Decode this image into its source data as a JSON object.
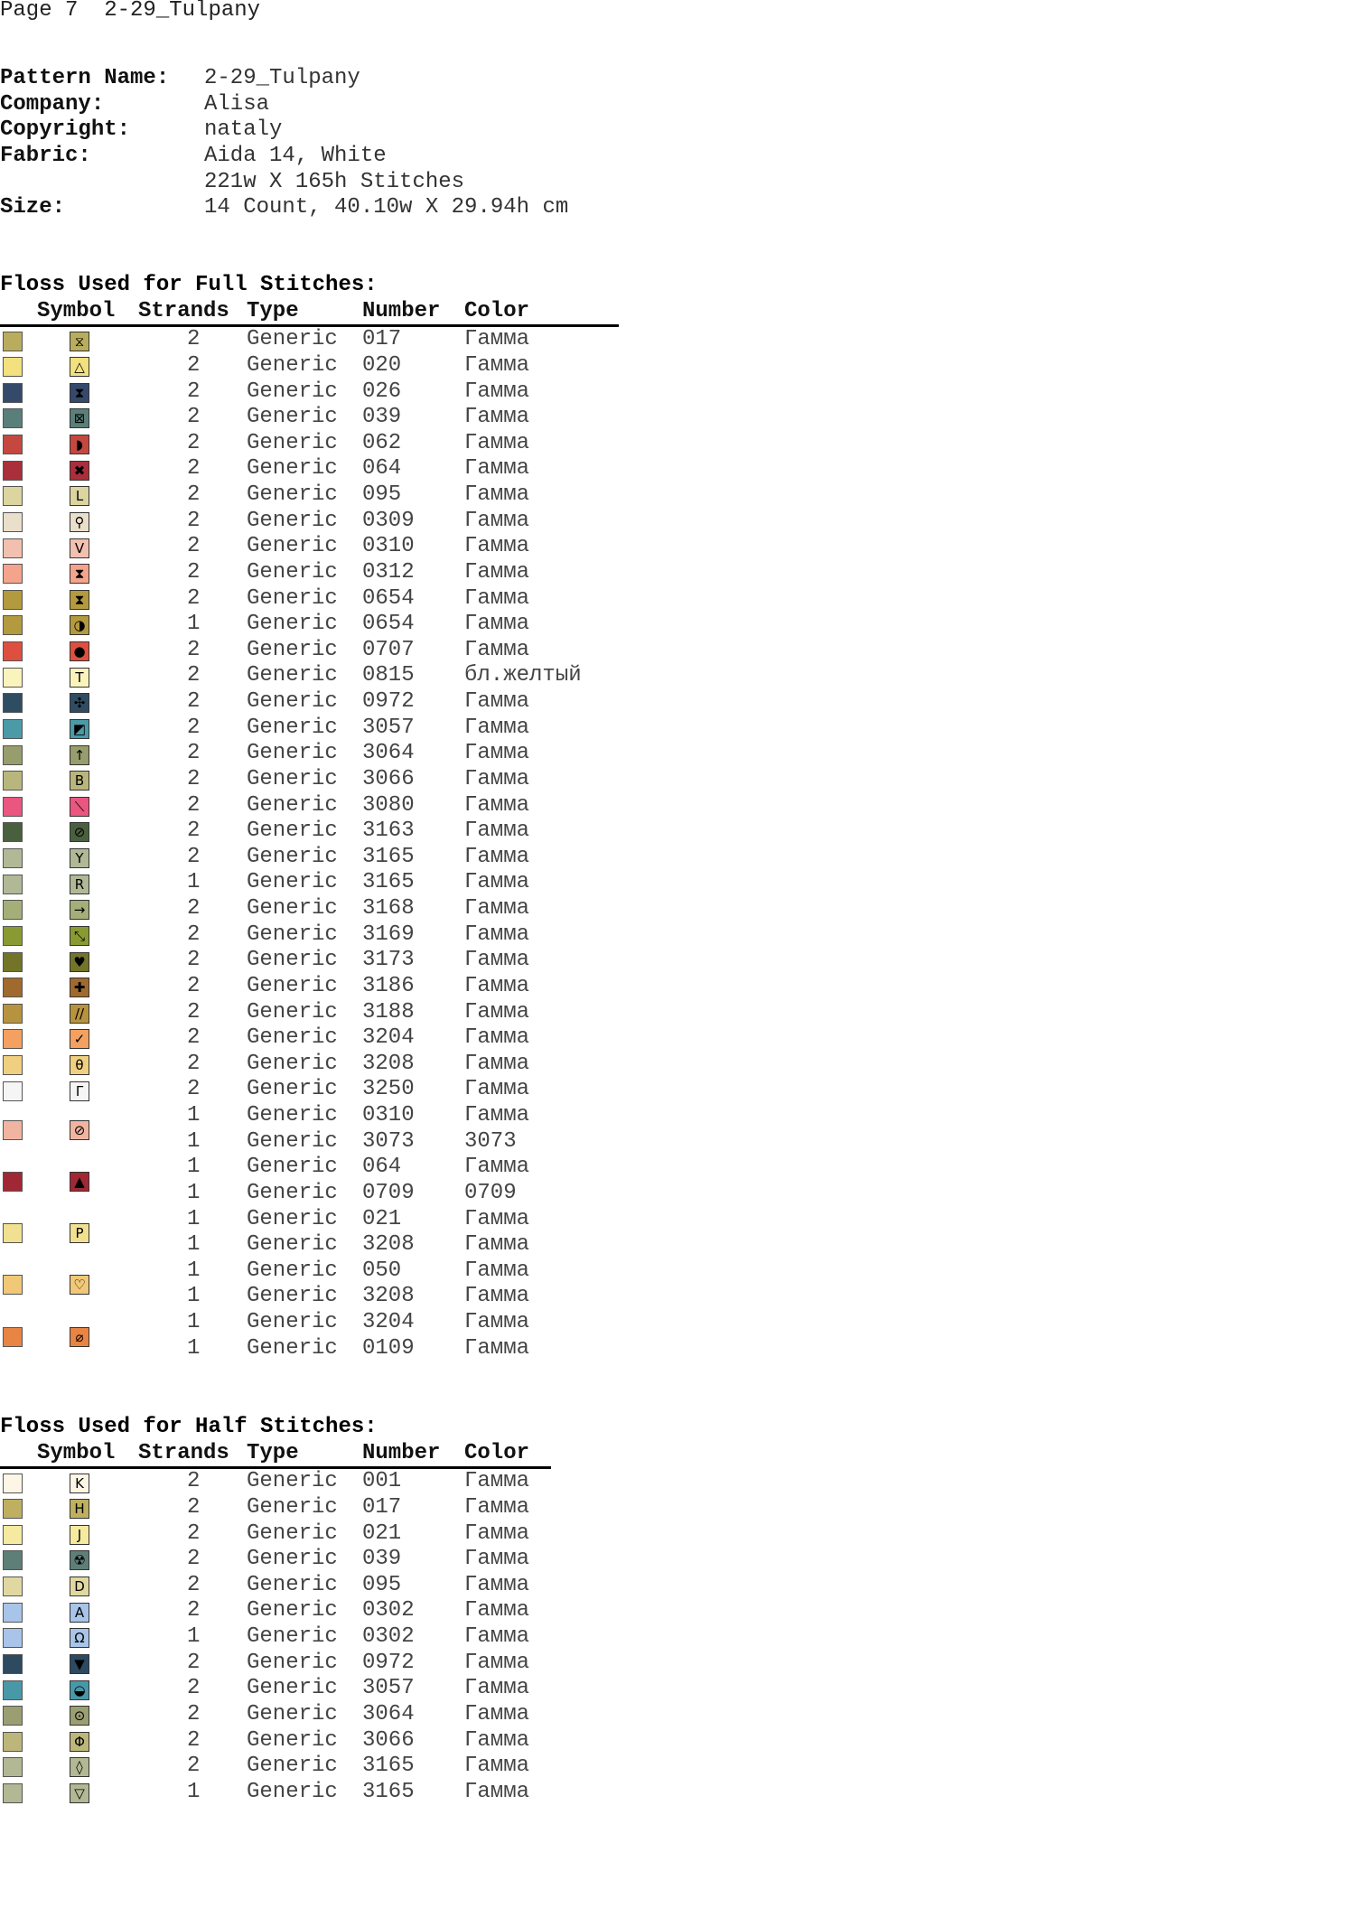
{
  "page_header": "Page 7  2-29_Tulpany",
  "info": [
    {
      "label": "Pattern Name:",
      "value": "2-29_Tulpany"
    },
    {
      "label": "Company:",
      "value": "Alisa"
    },
    {
      "label": "Copyright:",
      "value": "nataly"
    },
    {
      "label": "Fabric:",
      "value": "Aida 14, White"
    },
    {
      "label": "",
      "value": "221w X 165h Stitches"
    },
    {
      "label": "Size:",
      "value": "14 Count,   40.10w X 29.94h cm"
    }
  ],
  "columns": {
    "symbol": "Symbol",
    "strands": "Strands",
    "type": "Type",
    "number": "Number",
    "color": "Color"
  },
  "full": {
    "title": "Floss Used for Full Stitches:",
    "rows": [
      {
        "swatch": "#b9ad5d",
        "symbol": "⧖",
        "entries": [
          [
            "2",
            "Generic",
            "017",
            "Гамма"
          ]
        ]
      },
      {
        "swatch": "#f3e07e",
        "symbol": "△",
        "entries": [
          [
            "2",
            "Generic",
            "020",
            "Гамма"
          ]
        ]
      },
      {
        "swatch": "#354a6b",
        "symbol": "⧗",
        "entries": [
          [
            "2",
            "Generic",
            "026",
            "Гамма"
          ]
        ]
      },
      {
        "swatch": "#5a7f7a",
        "symbol": "⊠",
        "entries": [
          [
            "2",
            "Generic",
            "039",
            "Гамма"
          ]
        ]
      },
      {
        "swatch": "#c4483f",
        "symbol": "◗",
        "entries": [
          [
            "2",
            "Generic",
            "062",
            "Гамма"
          ]
        ]
      },
      {
        "swatch": "#a92f3a",
        "symbol": "✖",
        "entries": [
          [
            "2",
            "Generic",
            "064",
            "Гамма"
          ]
        ]
      },
      {
        "swatch": "#ddd5a0",
        "symbol": "L",
        "entries": [
          [
            "2",
            "Generic",
            "095",
            "Гамма"
          ]
        ]
      },
      {
        "swatch": "#eadfca",
        "symbol": "⚲",
        "entries": [
          [
            "2",
            "Generic",
            "0309",
            "Гамма"
          ]
        ]
      },
      {
        "swatch": "#f2c0ae",
        "symbol": "V",
        "entries": [
          [
            "2",
            "Generic",
            "0310",
            "Гамма"
          ]
        ]
      },
      {
        "swatch": "#f4a48c",
        "symbol": "⧗",
        "entries": [
          [
            "2",
            "Generic",
            "0312",
            "Гамма"
          ]
        ]
      },
      {
        "swatch": "#b39a3e",
        "symbol": "⧗",
        "entries": [
          [
            "2",
            "Generic",
            "0654",
            "Гамма"
          ]
        ]
      },
      {
        "swatch": "#b39a3e",
        "symbol": "◑",
        "entries": [
          [
            "1",
            "Generic",
            "0654",
            "Гамма"
          ]
        ]
      },
      {
        "swatch": "#dd5040",
        "symbol": "●",
        "entries": [
          [
            "2",
            "Generic",
            "0707",
            "Гамма"
          ]
        ]
      },
      {
        "swatch": "#fbf3bc",
        "symbol": "T",
        "entries": [
          [
            "2",
            "Generic",
            "0815",
            "бл.желтый"
          ]
        ]
      },
      {
        "swatch": "#2f4d62",
        "symbol": "✣",
        "entries": [
          [
            "2",
            "Generic",
            "0972",
            "Гамма"
          ]
        ]
      },
      {
        "swatch": "#4b9aa8",
        "symbol": "◩",
        "entries": [
          [
            "2",
            "Generic",
            "3057",
            "Гамма"
          ]
        ]
      },
      {
        "swatch": "#979d6c",
        "symbol": "↑",
        "entries": [
          [
            "2",
            "Generic",
            "3064",
            "Гамма"
          ]
        ]
      },
      {
        "swatch": "#b8b67c",
        "symbol": "B",
        "entries": [
          [
            "2",
            "Generic",
            "3066",
            "Гамма"
          ]
        ]
      },
      {
        "swatch": "#e9567f",
        "symbol": "⟍",
        "entries": [
          [
            "2",
            "Generic",
            "3080",
            "Гамма"
          ]
        ]
      },
      {
        "swatch": "#49603f",
        "symbol": "⊘",
        "entries": [
          [
            "2",
            "Generic",
            "3163",
            "Гамма"
          ]
        ]
      },
      {
        "swatch": "#b0b896",
        "symbol": "Y",
        "entries": [
          [
            "2",
            "Generic",
            "3165",
            "Гамма"
          ]
        ]
      },
      {
        "swatch": "#b0b896",
        "symbol": "R",
        "entries": [
          [
            "1",
            "Generic",
            "3165",
            "Гамма"
          ]
        ]
      },
      {
        "swatch": "#a3ae79",
        "symbol": "→",
        "entries": [
          [
            "2",
            "Generic",
            "3168",
            "Гамма"
          ]
        ]
      },
      {
        "swatch": "#8a9a33",
        "symbol": "⤡",
        "entries": [
          [
            "2",
            "Generic",
            "3169",
            "Гамма"
          ]
        ]
      },
      {
        "swatch": "#727528",
        "symbol": "♥",
        "entries": [
          [
            "2",
            "Generic",
            "3173",
            "Гамма"
          ]
        ]
      },
      {
        "swatch": "#a06a2e",
        "symbol": "✚",
        "entries": [
          [
            "2",
            "Generic",
            "3186",
            "Гамма"
          ]
        ]
      },
      {
        "swatch": "#b8933f",
        "symbol": "//",
        "entries": [
          [
            "2",
            "Generic",
            "3188",
            "Гамма"
          ]
        ]
      },
      {
        "swatch": "#f3a060",
        "symbol": "✓",
        "entries": [
          [
            "2",
            "Generic",
            "3204",
            "Гамма"
          ]
        ]
      },
      {
        "swatch": "#f0d080",
        "symbol": "θ",
        "entries": [
          [
            "2",
            "Generic",
            "3208",
            "Гамма"
          ]
        ]
      },
      {
        "swatch": "#f5f5f5",
        "symbol": "Γ",
        "entries": [
          [
            "2",
            "Generic",
            "3250",
            "Гамма"
          ]
        ]
      },
      {
        "swatch": "#f0b4a0",
        "symbol": "⊘",
        "entries": [
          [
            "1",
            "Generic",
            "0310",
            "Гамма"
          ],
          [
            "1",
            "Generic",
            "3073",
            "3073"
          ]
        ]
      },
      {
        "swatch": "#a02835",
        "symbol": "▲",
        "entries": [
          [
            "1",
            "Generic",
            "064",
            "Гамма"
          ],
          [
            "1",
            "Generic",
            "0709",
            "0709"
          ]
        ]
      },
      {
        "swatch": "#f0e090",
        "symbol": "P",
        "entries": [
          [
            "1",
            "Generic",
            "021",
            "Гамма"
          ],
          [
            "1",
            "Generic",
            "3208",
            "Гамма"
          ]
        ]
      },
      {
        "swatch": "#f0c878",
        "symbol": "♡",
        "entries": [
          [
            "1",
            "Generic",
            "050",
            "Гамма"
          ],
          [
            "1",
            "Generic",
            "3208",
            "Гамма"
          ]
        ]
      },
      {
        "swatch": "#e88444",
        "symbol": "⌀",
        "entries": [
          [
            "1",
            "Generic",
            "3204",
            "Гамма"
          ],
          [
            "1",
            "Generic",
            "0109",
            "Гамма"
          ]
        ]
      }
    ]
  },
  "half": {
    "title": "Floss Used for Half Stitches:",
    "rows": [
      {
        "swatch": "#fdf6e6",
        "symbol": "K",
        "entries": [
          [
            "2",
            "Generic",
            "001",
            "Гамма"
          ]
        ]
      },
      {
        "swatch": "#beb060",
        "symbol": "H",
        "entries": [
          [
            "2",
            "Generic",
            "017",
            "Гамма"
          ]
        ]
      },
      {
        "swatch": "#f5eaa0",
        "symbol": "J",
        "entries": [
          [
            "2",
            "Generic",
            "021",
            "Гамма"
          ]
        ]
      },
      {
        "swatch": "#5e7e78",
        "symbol": "☢",
        "entries": [
          [
            "2",
            "Generic",
            "039",
            "Гамма"
          ]
        ]
      },
      {
        "swatch": "#e0d8a0",
        "symbol": "D",
        "entries": [
          [
            "2",
            "Generic",
            "095",
            "Гамма"
          ]
        ]
      },
      {
        "swatch": "#a8c4e8",
        "symbol": "A",
        "entries": [
          [
            "2",
            "Generic",
            "0302",
            "Гамма"
          ]
        ]
      },
      {
        "swatch": "#a8c4e8",
        "symbol": "Ω",
        "entries": [
          [
            "1",
            "Generic",
            "0302",
            "Гамма"
          ]
        ]
      },
      {
        "swatch": "#2d4a60",
        "symbol": "▼",
        "entries": [
          [
            "2",
            "Generic",
            "0972",
            "Гамма"
          ]
        ]
      },
      {
        "swatch": "#4898a8",
        "symbol": "◒",
        "entries": [
          [
            "2",
            "Generic",
            "3057",
            "Гамма"
          ]
        ]
      },
      {
        "swatch": "#9a9e70",
        "symbol": "⊙",
        "entries": [
          [
            "2",
            "Generic",
            "3064",
            "Гамма"
          ]
        ]
      },
      {
        "swatch": "#bcb67a",
        "symbol": "Φ",
        "entries": [
          [
            "2",
            "Generic",
            "3066",
            "Гамма"
          ]
        ]
      },
      {
        "swatch": "#b2b894",
        "symbol": "◊",
        "entries": [
          [
            "2",
            "Generic",
            "3165",
            "Гамма"
          ]
        ]
      },
      {
        "swatch": "#b2b894",
        "symbol": "▽",
        "entries": [
          [
            "1",
            "Generic",
            "3165",
            "Гамма"
          ]
        ]
      }
    ]
  }
}
